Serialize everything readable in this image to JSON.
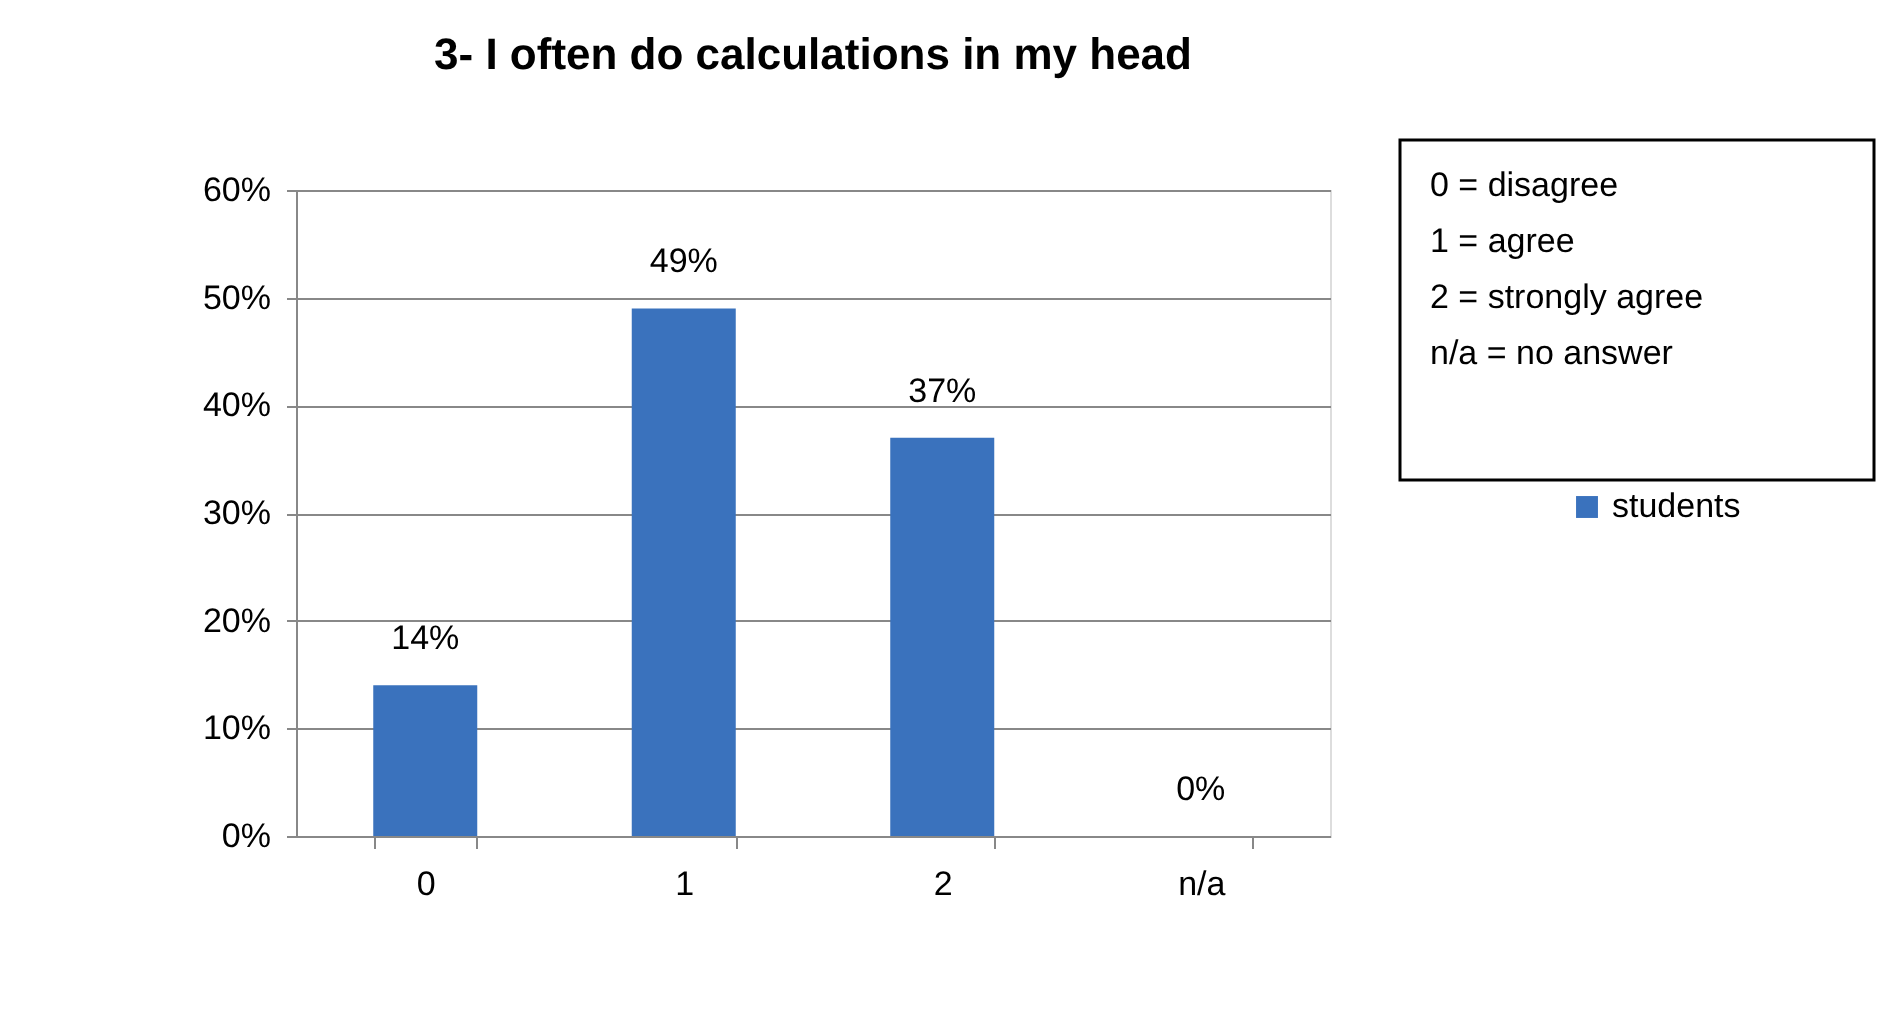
{
  "chart_data": {
    "type": "bar",
    "title": "3- I often do calculations in my head",
    "categories": [
      "0",
      "1",
      "2",
      "n/a"
    ],
    "series": [
      {
        "name": "students",
        "color": "#3a72bd",
        "values": [
          14,
          49,
          37,
          0
        ]
      }
    ],
    "value_labels": [
      "14%",
      "49%",
      "37%",
      "0%"
    ],
    "ylim": [
      0,
      60
    ],
    "yticks": [
      {
        "value": 0,
        "label": "0%"
      },
      {
        "value": 10,
        "label": "10%"
      },
      {
        "value": 20,
        "label": "20%"
      },
      {
        "value": 30,
        "label": "30%"
      },
      {
        "value": 40,
        "label": "40%"
      },
      {
        "value": 50,
        "label": "50%"
      },
      {
        "value": 60,
        "label": "60%"
      }
    ],
    "grid": "y",
    "legend": "right",
    "annotations": [
      "0 = disagree",
      "1 = agree",
      "2 = strongly agree",
      "n/a = no answer"
    ]
  }
}
